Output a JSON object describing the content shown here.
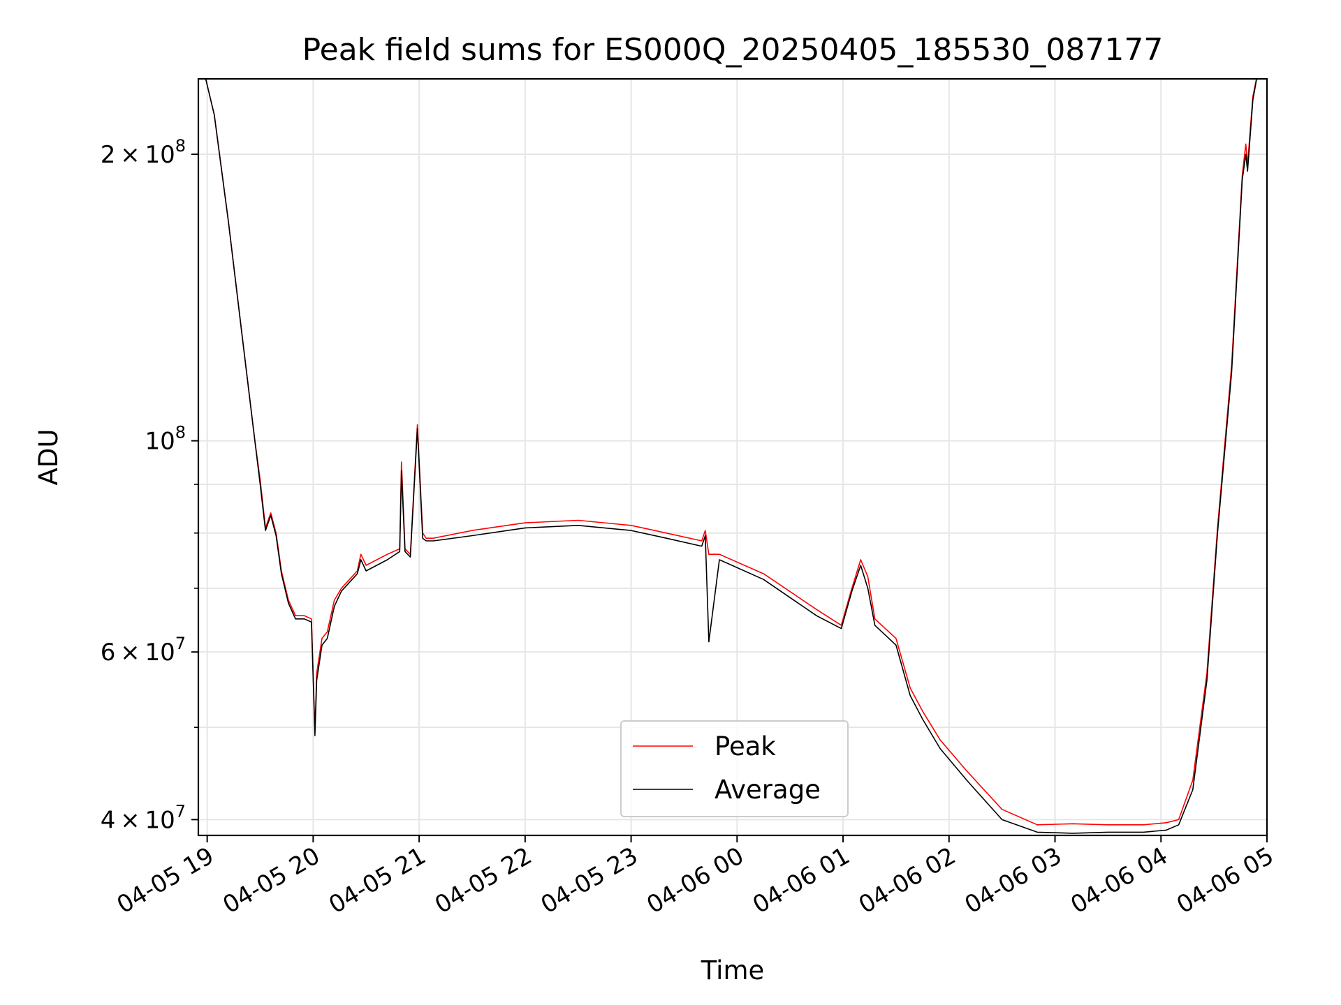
{
  "chart_data": {
    "type": "line",
    "title": "Peak field sums for ES000Q_20250405_185530_087177",
    "xlabel": "Time",
    "ylabel": "ADU",
    "yscale": "log",
    "xlim": [
      "2025-04-05 18:55",
      "2025-04-06 05:00"
    ],
    "ylim": [
      38500000,
      240000000
    ],
    "x_ticks": [
      {
        "value": "2025-04-05 19:00",
        "label": "04-05 19"
      },
      {
        "value": "2025-04-05 20:00",
        "label": "04-05 20"
      },
      {
        "value": "2025-04-05 21:00",
        "label": "04-05 21"
      },
      {
        "value": "2025-04-05 22:00",
        "label": "04-05 22"
      },
      {
        "value": "2025-04-05 23:00",
        "label": "04-05 23"
      },
      {
        "value": "2025-04-06 00:00",
        "label": "04-06 00"
      },
      {
        "value": "2025-04-06 01:00",
        "label": "04-06 01"
      },
      {
        "value": "2025-04-06 02:00",
        "label": "04-06 02"
      },
      {
        "value": "2025-04-06 03:00",
        "label": "04-06 03"
      },
      {
        "value": "2025-04-06 04:00",
        "label": "04-06 04"
      },
      {
        "value": "2025-04-06 05:00",
        "label": "04-06 05"
      }
    ],
    "y_ticks": [
      {
        "value": 40000000,
        "mantissa": "4",
        "exponent": "7"
      },
      {
        "value": 60000000,
        "mantissa": "6",
        "exponent": "7"
      },
      {
        "value": 100000000,
        "mantissa": "",
        "exponent": "8"
      },
      {
        "value": 200000000,
        "mantissa": "2",
        "exponent": "8"
      }
    ],
    "y_minor_ticks": [
      50000000,
      70000000,
      80000000,
      90000000
    ],
    "grid": true,
    "legend_position": "lower-center",
    "series": [
      {
        "name": "Peak",
        "color": "#ff0000",
        "x": [
          "2025-04-05 18:58",
          "2025-04-05 19:04",
          "2025-04-05 19:12",
          "2025-04-05 19:20",
          "2025-04-05 19:27",
          "2025-04-05 19:30",
          "2025-04-05 19:33",
          "2025-04-05 19:36",
          "2025-04-05 19:39",
          "2025-04-05 19:42",
          "2025-04-05 19:46",
          "2025-04-05 19:50",
          "2025-04-05 19:55",
          "2025-04-05 19:59",
          "2025-04-05 20:01",
          "2025-04-05 20:02",
          "2025-04-05 20:05",
          "2025-04-05 20:08",
          "2025-04-05 20:12",
          "2025-04-05 20:16",
          "2025-04-05 20:25",
          "2025-04-05 20:27",
          "2025-04-05 20:30",
          "2025-04-05 20:42",
          "2025-04-05 20:49",
          "2025-04-05 20:50",
          "2025-04-05 20:52",
          "2025-04-05 20:55",
          "2025-04-05 20:59",
          "2025-04-05 21:02",
          "2025-04-05 21:04",
          "2025-04-05 21:08",
          "2025-04-05 21:30",
          "2025-04-05 22:00",
          "2025-04-05 22:30",
          "2025-04-05 23:00",
          "2025-04-05 23:20",
          "2025-04-05 23:40",
          "2025-04-05 23:42",
          "2025-04-05 23:44",
          "2025-04-05 23:50",
          "2025-04-06 00:15",
          "2025-04-06 00:45",
          "2025-04-06 00:59",
          "2025-04-06 01:05",
          "2025-04-06 01:10",
          "2025-04-06 01:14",
          "2025-04-06 01:18",
          "2025-04-06 01:30",
          "2025-04-06 01:38",
          "2025-04-06 01:45",
          "2025-04-06 01:55",
          "2025-04-06 02:10",
          "2025-04-06 02:30",
          "2025-04-06 02:50",
          "2025-04-06 03:10",
          "2025-04-06 03:30",
          "2025-04-06 03:50",
          "2025-04-06 04:03",
          "2025-04-06 04:10",
          "2025-04-06 04:18",
          "2025-04-06 04:26",
          "2025-04-06 04:32",
          "2025-04-06 04:40",
          "2025-04-06 04:46",
          "2025-04-06 04:48",
          "2025-04-06 04:49",
          "2025-04-06 04:52",
          "2025-04-06 04:55"
        ],
        "y": [
          245000000,
          220000000,
          170000000,
          128000000,
          100000000,
          91000000,
          81000000,
          84000000,
          80000000,
          73000000,
          68000000,
          65500000,
          65500000,
          65000000,
          49500000,
          57000000,
          62000000,
          63000000,
          68000000,
          70000000,
          73000000,
          76000000,
          74000000,
          76000000,
          77000000,
          95000000,
          77000000,
          76000000,
          104000000,
          80000000,
          79000000,
          79000000,
          80500000,
          82000000,
          82500000,
          81500000,
          80000000,
          78500000,
          80500000,
          76000000,
          76000000,
          72500000,
          66500000,
          64000000,
          70000000,
          75000000,
          72000000,
          65000000,
          62000000,
          55000000,
          52000000,
          48500000,
          45000000,
          41000000,
          39500000,
          39600000,
          39500000,
          39500000,
          39700000,
          40000000,
          44000000,
          57000000,
          81000000,
          120000000,
          190000000,
          205000000,
          195000000,
          230000000,
          245000000
        ]
      },
      {
        "name": "Average",
        "color": "#000000",
        "x": [
          "2025-04-05 18:58",
          "2025-04-05 19:04",
          "2025-04-05 19:12",
          "2025-04-05 19:20",
          "2025-04-05 19:27",
          "2025-04-05 19:30",
          "2025-04-05 19:33",
          "2025-04-05 19:36",
          "2025-04-05 19:39",
          "2025-04-05 19:42",
          "2025-04-05 19:46",
          "2025-04-05 19:50",
          "2025-04-05 19:55",
          "2025-04-05 19:59",
          "2025-04-05 20:01",
          "2025-04-05 20:02",
          "2025-04-05 20:05",
          "2025-04-05 20:08",
          "2025-04-05 20:12",
          "2025-04-05 20:16",
          "2025-04-05 20:25",
          "2025-04-05 20:27",
          "2025-04-05 20:30",
          "2025-04-05 20:42",
          "2025-04-05 20:49",
          "2025-04-05 20:50",
          "2025-04-05 20:52",
          "2025-04-05 20:55",
          "2025-04-05 20:59",
          "2025-04-05 21:02",
          "2025-04-05 21:04",
          "2025-04-05 21:08",
          "2025-04-05 21:30",
          "2025-04-05 22:00",
          "2025-04-05 22:30",
          "2025-04-05 23:00",
          "2025-04-05 23:20",
          "2025-04-05 23:40",
          "2025-04-05 23:42",
          "2025-04-05 23:44",
          "2025-04-05 23:50",
          "2025-04-06 00:15",
          "2025-04-06 00:45",
          "2025-04-06 00:59",
          "2025-04-06 01:05",
          "2025-04-06 01:10",
          "2025-04-06 01:14",
          "2025-04-06 01:18",
          "2025-04-06 01:30",
          "2025-04-06 01:38",
          "2025-04-06 01:45",
          "2025-04-06 01:55",
          "2025-04-06 02:10",
          "2025-04-06 02:30",
          "2025-04-06 02:50",
          "2025-04-06 03:10",
          "2025-04-06 03:30",
          "2025-04-06 03:50",
          "2025-04-06 04:03",
          "2025-04-06 04:10",
          "2025-04-06 04:18",
          "2025-04-06 04:26",
          "2025-04-06 04:32",
          "2025-04-06 04:40",
          "2025-04-06 04:46",
          "2025-04-06 04:48",
          "2025-04-06 04:49",
          "2025-04-06 04:52",
          "2025-04-06 04:55"
        ],
        "y": [
          245000000,
          220000000,
          170000000,
          128000000,
          100000000,
          90000000,
          80500000,
          83500000,
          79500000,
          72500000,
          67500000,
          65000000,
          65000000,
          64500000,
          49000000,
          56000000,
          61000000,
          62000000,
          67000000,
          69500000,
          72500000,
          75000000,
          73000000,
          75000000,
          76500000,
          93000000,
          76500000,
          75500000,
          103000000,
          79000000,
          78500000,
          78500000,
          79500000,
          81000000,
          81500000,
          80500000,
          79000000,
          77500000,
          79500000,
          61500000,
          75000000,
          71500000,
          65500000,
          63500000,
          69500000,
          74000000,
          70000000,
          64000000,
          61000000,
          54000000,
          51000000,
          47500000,
          44000000,
          40000000,
          38800000,
          38700000,
          38800000,
          38800000,
          39000000,
          39500000,
          43000000,
          56000000,
          80000000,
          118000000,
          188000000,
          200000000,
          192000000,
          228000000,
          245000000
        ]
      }
    ]
  }
}
